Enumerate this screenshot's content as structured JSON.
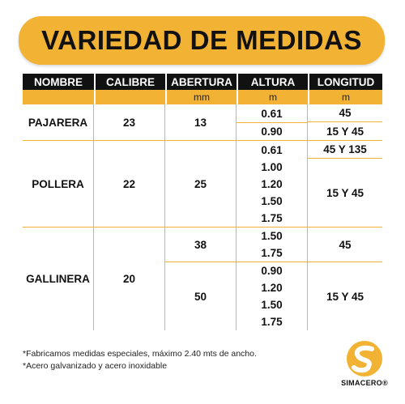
{
  "title": "VARIEDAD DE MEDIDAS",
  "headers": [
    "NOMBRE",
    "CALIBRE",
    "ABERTURA",
    "ALTURA",
    "LONGITUD"
  ],
  "units": [
    "",
    "",
    "mm",
    "m",
    "m"
  ],
  "products": [
    {
      "name": "PAJARERA",
      "calibre": "23",
      "aberturas": [
        {
          "value": "13",
          "alturas": [
            "0.61",
            "0.90"
          ]
        }
      ],
      "longitudes": [
        {
          "value": "45",
          "rows": 1
        },
        {
          "value": "15 Y 45",
          "rows": 1
        }
      ]
    },
    {
      "name": "POLLERA",
      "calibre": "22",
      "aberturas": [
        {
          "value": "25",
          "alturas": [
            "0.61",
            "1.00",
            "1.20",
            "1.50",
            "1.75"
          ]
        }
      ],
      "longitudes": [
        {
          "value": "45 Y 135",
          "rows": 1
        },
        {
          "value": "15 Y 45",
          "rows": 4
        }
      ]
    },
    {
      "name": "GALLINERA",
      "calibre": "20",
      "aberturas": [
        {
          "value": "38",
          "alturas": [
            "1.50",
            "1.75"
          ]
        },
        {
          "value": "50",
          "alturas": [
            "0.90",
            "1.20",
            "1.50",
            "1.75"
          ]
        }
      ],
      "longitudes": [
        {
          "value": "45",
          "rows": 2
        },
        {
          "value": "15 Y 45",
          "rows": 4
        }
      ]
    }
  ],
  "notes": [
    "*Fabricamos medidas especiales, máximo 2.40 mts de ancho.",
    "*Acero galvanizado y acero inoxidable"
  ],
  "brand": "SIMACERO",
  "brand_mark": "®",
  "colors": {
    "accent": "#f2b233",
    "header_bg": "#111111"
  }
}
